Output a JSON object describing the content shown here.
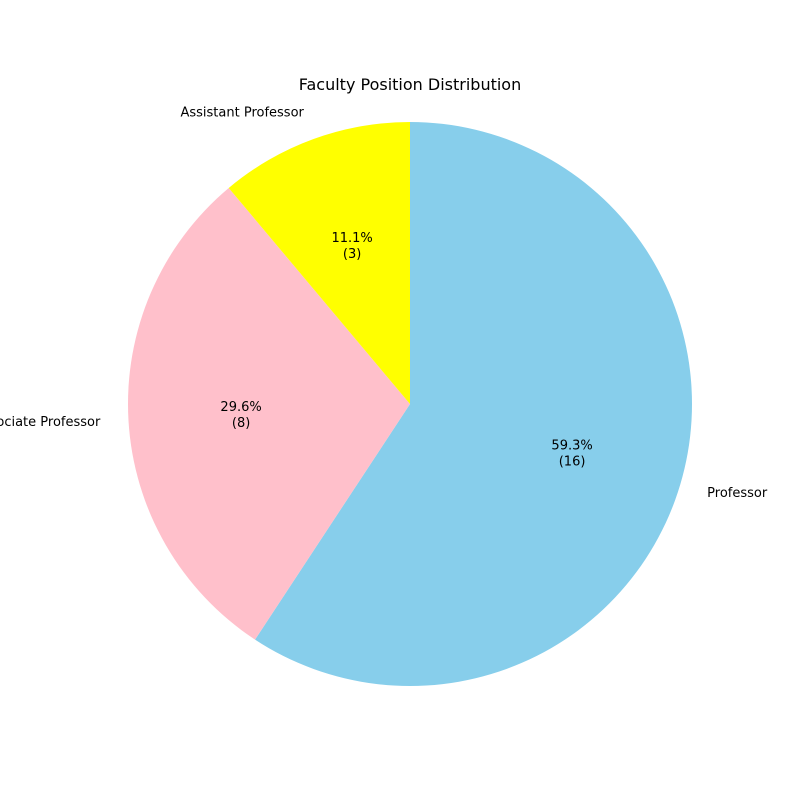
{
  "chart_data": {
    "type": "pie",
    "title": "Faculty Position Distribution",
    "categories": [
      "Professor",
      "Associate Professor",
      "Assistant Professor"
    ],
    "values": [
      16,
      8,
      3
    ],
    "percent_labels": [
      "59.3%",
      "29.6%",
      "11.1%"
    ],
    "count_labels": [
      "(16)",
      "(8)",
      "(3)"
    ],
    "colors": [
      "#87ceeb",
      "#ffc0cb",
      "#ffff00"
    ],
    "start_angle_deg": 90,
    "direction": "clockwise"
  }
}
